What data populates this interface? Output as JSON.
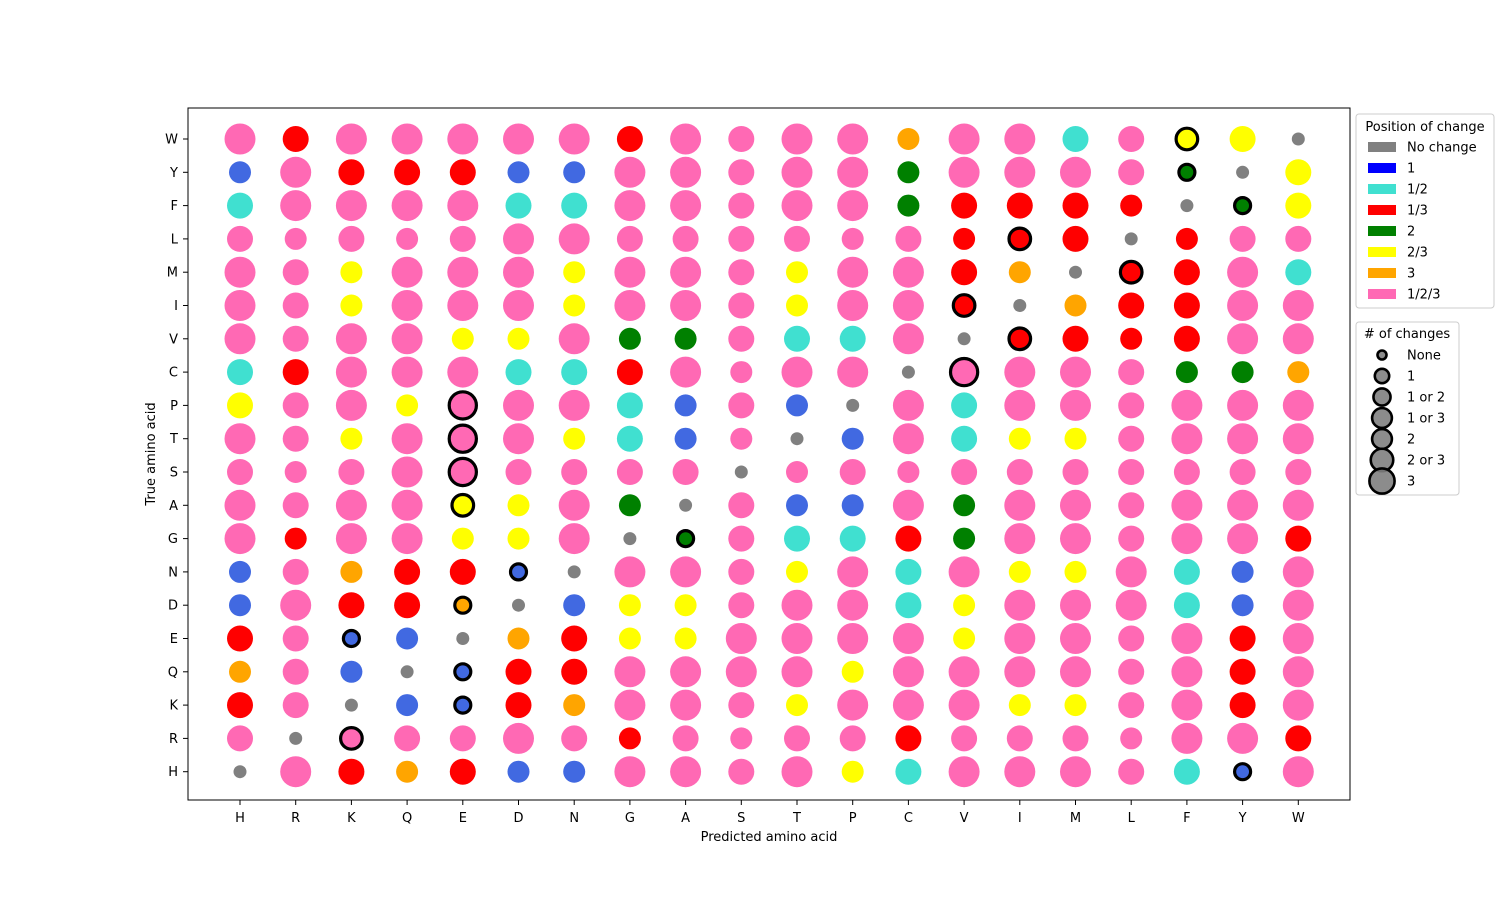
{
  "chart_data": {
    "type": "scatter",
    "title": "",
    "xlabel": "Predicted amino acid",
    "ylabel": "True amino acid",
    "x_categories": [
      "H",
      "R",
      "K",
      "Q",
      "E",
      "D",
      "N",
      "G",
      "A",
      "S",
      "T",
      "P",
      "C",
      "V",
      "I",
      "M",
      "L",
      "F",
      "Y",
      "W"
    ],
    "y_categories": [
      "H",
      "R",
      "K",
      "Q",
      "E",
      "D",
      "N",
      "G",
      "A",
      "S",
      "T",
      "P",
      "C",
      "V",
      "I",
      "M",
      "L",
      "F",
      "Y",
      "W"
    ],
    "y_categories_order_note": "bottom-to-top",
    "position_legend": {
      "title": "Position of change",
      "placement": "upper right, outside",
      "entries": [
        {
          "code": "n",
          "label": "No change",
          "color": "#808080"
        },
        {
          "code": "b",
          "label": "1",
          "color": "#0000ff"
        },
        {
          "code": "t",
          "label": "1/2",
          "color": "#40e0d0"
        },
        {
          "code": "r",
          "label": "1/3",
          "color": "#ff0000"
        },
        {
          "code": "g",
          "label": "2",
          "color": "#008000"
        },
        {
          "code": "y",
          "label": "2/3",
          "color": "#ffff00"
        },
        {
          "code": "o",
          "label": "3",
          "color": "#ffa500"
        },
        {
          "code": "p",
          "label": "1/2/3",
          "color": "#ff69b4"
        }
      ]
    },
    "point_colors": {
      "n": "#808080",
      "b": "#4169e1",
      "t": "#40e0d0",
      "r": "#ff0000",
      "g": "#008000",
      "y": "#ffff00",
      "o": "#ffa500",
      "p": "#ff69b4"
    },
    "changes_legend": {
      "title": "# of changes",
      "placement": "right, below position legend",
      "entries": [
        {
          "label": "None",
          "value": 0
        },
        {
          "label": "1",
          "value": 1
        },
        {
          "label": "1 or 2",
          "value": 1.5
        },
        {
          "label": "1 or 3",
          "value": 2
        },
        {
          "label": "2",
          "value": 2
        },
        {
          "label": "2 or 3",
          "value": 2.5
        },
        {
          "label": "3",
          "value": 3
        }
      ]
    },
    "grid_note": "rows listed top (W) to bottom (H); each cell is position-of-change code + number-of-changes (0-3, .5 = either); * marks black-outlined points",
    "rows": [
      {
        "true": "W",
        "cells": [
          "p3",
          "r2",
          "p3",
          "p3",
          "p3",
          "p3",
          "p3",
          "r2",
          "p3",
          "p2",
          "p3",
          "p3",
          "o1",
          "p3",
          "p3",
          "t2",
          "p2",
          "y1*",
          "y2",
          "n0"
        ]
      },
      {
        "true": "Y",
        "cells": [
          "b1",
          "p3",
          "r2",
          "r2",
          "r2",
          "b1",
          "b1",
          "p3",
          "p3",
          "p2",
          "p3",
          "p3",
          "g1",
          "p3",
          "p3",
          "p3",
          "p2",
          "g0*",
          "n0",
          "y2"
        ]
      },
      {
        "true": "F",
        "cells": [
          "t2",
          "p3",
          "p3",
          "p3",
          "p3",
          "t2",
          "t2",
          "p3",
          "p3",
          "p2",
          "p3",
          "p3",
          "g1",
          "r2",
          "r2",
          "r2",
          "r1",
          "n0",
          "g0*",
          "y2"
        ]
      },
      {
        "true": "L",
        "cells": [
          "p2",
          "p1",
          "p2",
          "p1",
          "p2",
          "p3",
          "p3",
          "p2",
          "p2",
          "p2",
          "p2",
          "p1",
          "p2",
          "r1",
          "r1*",
          "r2",
          "n0",
          "r1",
          "p2",
          "p2"
        ]
      },
      {
        "true": "M",
        "cells": [
          "p3",
          "p2",
          "y1",
          "p3",
          "p3",
          "p3",
          "y1",
          "p3",
          "p3",
          "p2",
          "y1",
          "p3",
          "p3",
          "r2",
          "o1",
          "n0",
          "r1*",
          "r2",
          "p3",
          "t2"
        ]
      },
      {
        "true": "I",
        "cells": [
          "p3",
          "p2",
          "y1",
          "p3",
          "p3",
          "p3",
          "y1",
          "p3",
          "p3",
          "p2",
          "y1",
          "p3",
          "p3",
          "r1*",
          "n0",
          "o1",
          "r2",
          "r2",
          "p3",
          "p3"
        ]
      },
      {
        "true": "V",
        "cells": [
          "p3",
          "p2",
          "p3",
          "p3",
          "y1",
          "y1",
          "p3",
          "g1",
          "g1",
          "p2",
          "t2",
          "t2",
          "p3",
          "n0",
          "r1*",
          "r2",
          "r1",
          "r2",
          "p3",
          "p3"
        ]
      },
      {
        "true": "C",
        "cells": [
          "t2",
          "r2",
          "p3",
          "p3",
          "p3",
          "t2",
          "t2",
          "r2",
          "p3",
          "p1",
          "p3",
          "p3",
          "n0",
          "p2*",
          "p3",
          "p3",
          "p2",
          "g1",
          "g1",
          "o1"
        ]
      },
      {
        "true": "P",
        "cells": [
          "y2",
          "p2",
          "p3",
          "y1",
          "p2*",
          "p3",
          "p3",
          "t2",
          "b1",
          "p2",
          "b1",
          "n0",
          "p3",
          "t2",
          "p3",
          "p3",
          "p2",
          "p3",
          "p3",
          "p3"
        ]
      },
      {
        "true": "T",
        "cells": [
          "p3",
          "p2",
          "y1",
          "p3",
          "p2*",
          "p3",
          "y1",
          "t2",
          "b1",
          "p1",
          "n0",
          "b1",
          "p3",
          "t2",
          "y1",
          "y1",
          "p2",
          "p3",
          "p3",
          "p3"
        ]
      },
      {
        "true": "S",
        "cells": [
          "p2",
          "p1",
          "p2",
          "p3",
          "p2*",
          "p2",
          "p2",
          "p2",
          "p2",
          "n0",
          "p1",
          "p2",
          "p1",
          "p2",
          "p2",
          "p2",
          "p2",
          "p2",
          "p2",
          "p2"
        ]
      },
      {
        "true": "A",
        "cells": [
          "p3",
          "p2",
          "p3",
          "p3",
          "y1*",
          "y1",
          "p3",
          "g1",
          "n0",
          "p2",
          "b1",
          "b1",
          "p3",
          "g1",
          "p3",
          "p3",
          "p2",
          "p3",
          "p3",
          "p3"
        ]
      },
      {
        "true": "G",
        "cells": [
          "p3",
          "r1",
          "p3",
          "p3",
          "y1",
          "y1",
          "p3",
          "n0",
          "g0*",
          "p2",
          "t2",
          "t2",
          "r2",
          "g1",
          "p3",
          "p3",
          "p2",
          "p3",
          "p3",
          "r2"
        ]
      },
      {
        "true": "N",
        "cells": [
          "b1",
          "p2",
          "o1",
          "r2",
          "r2",
          "b0*",
          "n0",
          "p3",
          "p3",
          "p2",
          "y1",
          "p3",
          "t2",
          "p3",
          "y1",
          "y1",
          "p3",
          "t2",
          "b1",
          "p3"
        ]
      },
      {
        "true": "D",
        "cells": [
          "b1",
          "p3",
          "r2",
          "r2",
          "o0*",
          "n0",
          "b1",
          "y1",
          "y1",
          "p2",
          "p3",
          "p3",
          "t2",
          "y1",
          "p3",
          "p3",
          "p3",
          "t2",
          "b1",
          "p3"
        ]
      },
      {
        "true": "E",
        "cells": [
          "r2",
          "p2",
          "b0*",
          "b1",
          "n0",
          "o1",
          "r2",
          "y1",
          "y1",
          "p3",
          "p3",
          "p3",
          "p3",
          "y1",
          "p3",
          "p3",
          "p2",
          "p3",
          "r2",
          "p3"
        ]
      },
      {
        "true": "Q",
        "cells": [
          "o1",
          "p2",
          "b1",
          "n0",
          "b0*",
          "r2",
          "r2",
          "p3",
          "p3",
          "p3",
          "p3",
          "y1",
          "p3",
          "p3",
          "p3",
          "p3",
          "p2",
          "p3",
          "r2",
          "p3"
        ]
      },
      {
        "true": "K",
        "cells": [
          "r2",
          "p2",
          "n0",
          "b1",
          "b0*",
          "r2",
          "o1",
          "p3",
          "p3",
          "p2",
          "y1",
          "p3",
          "p3",
          "p3",
          "y1",
          "y1",
          "p2",
          "p3",
          "r2",
          "p3"
        ]
      },
      {
        "true": "R",
        "cells": [
          "p2",
          "n0",
          "p1*",
          "p2",
          "p2",
          "p3",
          "p2",
          "r1",
          "p2",
          "p1",
          "p2",
          "p2",
          "r2",
          "p2",
          "p2",
          "p2",
          "p1",
          "p3",
          "p3",
          "r2"
        ]
      },
      {
        "true": "H",
        "cells": [
          "n0",
          "p3",
          "r2",
          "o1",
          "r2",
          "b1",
          "b1",
          "p3",
          "p3",
          "p2",
          "p3",
          "y1",
          "t2",
          "p3",
          "p3",
          "p3",
          "p2",
          "t2",
          "b0*",
          "p3"
        ]
      }
    ]
  }
}
